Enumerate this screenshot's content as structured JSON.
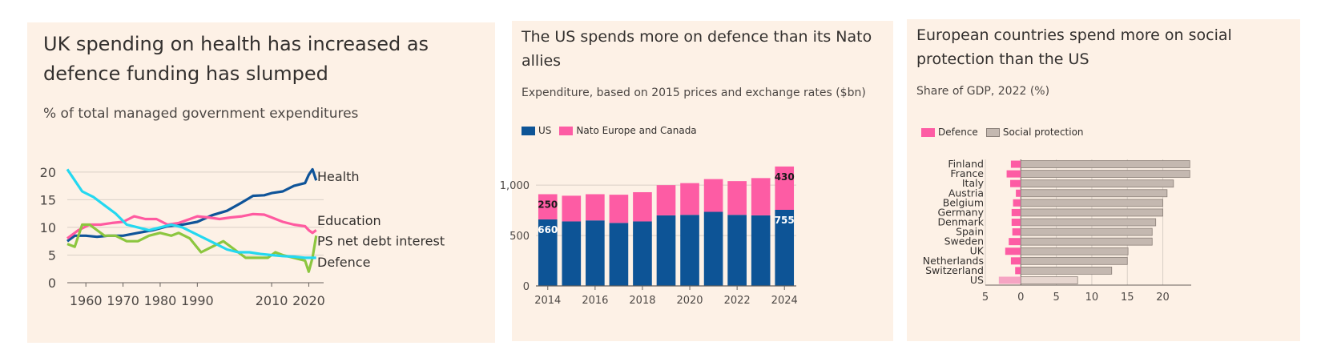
{
  "colors": {
    "panel_bg": "#fdf1e6",
    "gridline": "#d9cfc6",
    "axis": "#66605c",
    "health": "#0f5499",
    "education": "#ff5aa0",
    "debt_interest": "#8cc63f",
    "defence_line": "#24d8f0",
    "us": "#0d5496",
    "nato": "#fd5ca4",
    "social_protection": "#c4b8b0",
    "us_defence": "#f6a4c3",
    "us_social": "#e6d6cf"
  },
  "panels": [
    {
      "title": "UK spending on health has increased as defence funding has slumped",
      "subtitle": "% of total managed government expenditures"
    },
    {
      "title": "The US spends more on defence than its Nato allies",
      "subtitle": "Expenditure, based on 2015 prices and exchange rates ($bn)",
      "legend": [
        "US",
        "Nato Europe and Canada"
      ]
    },
    {
      "title": "European countries spend more on social protection than the US",
      "subtitle": "Share of GDP, 2022 (%)",
      "legend": [
        "Defence",
        "Social protection"
      ]
    }
  ],
  "chart_data": [
    {
      "type": "line",
      "title": "UK spending on health has increased as defence funding has slumped",
      "subtitle": "% of total managed government expenditures",
      "xlim": [
        1955,
        2024
      ],
      "ylim": [
        0,
        22
      ],
      "x_ticks": [
        1960,
        1970,
        1980,
        1990,
        2010,
        2020
      ],
      "y_ticks": [
        0,
        5,
        10,
        15,
        20
      ],
      "grid": true,
      "series": [
        {
          "name": "Health",
          "color": "#0f5499",
          "x": [
            1955,
            1957,
            1960,
            1963,
            1966,
            1970,
            1974,
            1978,
            1982,
            1986,
            1990,
            1994,
            1998,
            2002,
            2005,
            2008,
            2010,
            2013,
            2016,
            2019,
            2020,
            2021,
            2022
          ],
          "y": [
            7.5,
            8.5,
            8.5,
            8.3,
            8.5,
            8.5,
            9.0,
            9.5,
            10.2,
            10.5,
            11.0,
            12.2,
            13.0,
            14.5,
            15.7,
            15.8,
            16.2,
            16.5,
            17.5,
            18.0,
            19.5,
            20.5,
            18.5
          ]
        },
        {
          "name": "Education",
          "color": "#ff5aa0",
          "x": [
            1955,
            1958,
            1961,
            1964,
            1967,
            1970,
            1973,
            1976,
            1979,
            1982,
            1985,
            1988,
            1990,
            1993,
            1996,
            1999,
            2002,
            2005,
            2008,
            2010,
            2013,
            2016,
            2019,
            2020,
            2021,
            2022
          ],
          "y": [
            8.0,
            9.5,
            10.5,
            10.5,
            10.8,
            11.0,
            12.0,
            11.5,
            11.5,
            10.5,
            10.8,
            11.5,
            12.0,
            11.8,
            11.5,
            11.8,
            12.0,
            12.4,
            12.3,
            11.8,
            11.0,
            10.5,
            10.2,
            9.5,
            9.0,
            9.5
          ]
        },
        {
          "name": "PS net debt interest",
          "color": "#8cc63f",
          "x": [
            1955,
            1957,
            1959,
            1961,
            1963,
            1965,
            1968,
            1971,
            1974,
            1977,
            1980,
            1983,
            1985,
            1988,
            1991,
            1994,
            1997,
            2000,
            2003,
            2006,
            2009,
            2011,
            2013,
            2016,
            2019,
            2020,
            2021,
            2022
          ],
          "y": [
            7.0,
            6.5,
            10.5,
            10.5,
            9.5,
            8.5,
            8.5,
            7.5,
            7.5,
            8.5,
            9.0,
            8.5,
            9.0,
            8.0,
            5.5,
            6.5,
            7.5,
            6.0,
            4.5,
            4.5,
            4.5,
            5.5,
            5.0,
            4.5,
            4.0,
            2.0,
            4.5,
            8.5
          ]
        },
        {
          "name": "Defence",
          "color": "#24d8f0",
          "x": [
            1955,
            1957,
            1959,
            1962,
            1965,
            1968,
            1971,
            1974,
            1977,
            1980,
            1983,
            1986,
            1989,
            1992,
            1995,
            1998,
            2001,
            2004,
            2007,
            2010,
            2013,
            2016,
            2019,
            2022
          ],
          "y": [
            20.5,
            18.5,
            16.5,
            15.5,
            14.0,
            12.5,
            10.5,
            10.0,
            9.5,
            10.0,
            10.5,
            10.0,
            9.0,
            8.0,
            7.0,
            6.0,
            5.5,
            5.5,
            5.2,
            5.0,
            4.8,
            4.7,
            4.5,
            4.5
          ]
        }
      ]
    },
    {
      "type": "bar",
      "stacked": true,
      "title": "The US spends more on defence than its Nato allies",
      "subtitle": "Expenditure, based on 2015 prices and exchange rates ($bn)",
      "categories": [
        2014,
        2015,
        2016,
        2017,
        2018,
        2019,
        2020,
        2021,
        2022,
        2023,
        2024
      ],
      "x_ticks": [
        2014,
        2016,
        2018,
        2020,
        2022,
        2024
      ],
      "y_ticks": [
        0,
        500,
        1000
      ],
      "y_tick_labels": [
        "0",
        "500",
        "1,000"
      ],
      "ylim": [
        0,
        1200
      ],
      "grid": true,
      "legend": "top-left",
      "series": [
        {
          "name": "US",
          "color": "#0d5496",
          "values": [
            660,
            640,
            650,
            625,
            640,
            700,
            705,
            735,
            705,
            700,
            755
          ]
        },
        {
          "name": "Nato Europe and Canada",
          "color": "#fd5ca4",
          "values": [
            250,
            255,
            260,
            280,
            290,
            300,
            315,
            325,
            335,
            370,
            430
          ]
        }
      ],
      "data_labels": [
        {
          "category": 2014,
          "series": "Nato Europe and Canada",
          "text": "250"
        },
        {
          "category": 2014,
          "series": "US",
          "text": "660"
        },
        {
          "category": 2024,
          "series": "Nato Europe and Canada",
          "text": "430"
        },
        {
          "category": 2024,
          "series": "US",
          "text": "755"
        }
      ]
    },
    {
      "type": "bar",
      "orientation": "horizontal",
      "title": "European countries spend more on social protection than the US",
      "subtitle": "Share of GDP, 2022 (%)",
      "categories": [
        "Finland",
        "France",
        "Italy",
        "Austria",
        "Belgium",
        "Germany",
        "Denmark",
        "Spain",
        "Sweden",
        "UK",
        "Netherlands",
        "Switzerland",
        "US"
      ],
      "xlim": [
        -5,
        24
      ],
      "x_ticks": [
        -5,
        0,
        5,
        10,
        15,
        20
      ],
      "x_tick_labels": [
        "5",
        "0",
        "5",
        "10",
        "15",
        "20"
      ],
      "grid": true,
      "legend": "top-left",
      "series": [
        {
          "name": "Defence",
          "color": "#fd5ca4",
          "direction": "left",
          "values": [
            1.4,
            2.0,
            1.5,
            0.7,
            1.1,
            1.3,
            1.3,
            1.2,
            1.7,
            2.2,
            1.4,
            0.8,
            3.1
          ]
        },
        {
          "name": "Social protection",
          "color": "#c4b8b0",
          "values": [
            23.8,
            23.8,
            21.5,
            20.6,
            20.0,
            20.0,
            19.0,
            18.5,
            18.5,
            15.1,
            15.0,
            12.8,
            8.0
          ]
        }
      ]
    }
  ]
}
